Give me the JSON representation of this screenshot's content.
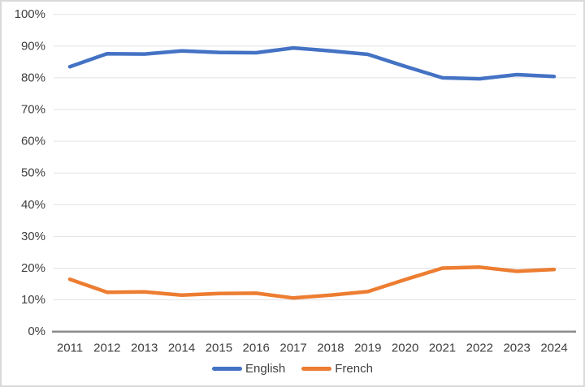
{
  "chart_data": {
    "type": "line",
    "title": "",
    "xlabel": "",
    "ylabel": "",
    "x": [
      2011,
      2012,
      2013,
      2014,
      2015,
      2016,
      2017,
      2018,
      2019,
      2020,
      2021,
      2022,
      2023,
      2024
    ],
    "x_ticks": [
      "2011",
      "2012",
      "2013",
      "2014",
      "2015",
      "2016",
      "2017",
      "2018",
      "2019",
      "2020",
      "2021",
      "2022",
      "2023",
      "2024"
    ],
    "series": [
      {
        "name": "English",
        "color": "#4472C4",
        "values": [
          83.5,
          87.6,
          87.5,
          88.5,
          88.0,
          87.9,
          89.4,
          88.5,
          87.4,
          83.6,
          80.0,
          79.7,
          81.0,
          80.4
        ]
      },
      {
        "name": "French",
        "color": "#ED7D31",
        "values": [
          16.5,
          12.4,
          12.5,
          11.5,
          12.0,
          12.1,
          10.6,
          11.5,
          12.6,
          16.4,
          20.0,
          20.3,
          19.0,
          19.6
        ]
      }
    ],
    "ylim": [
      0,
      100
    ],
    "y_tick_step": 10,
    "y_ticks": [
      "0%",
      "10%",
      "20%",
      "30%",
      "40%",
      "50%",
      "60%",
      "70%",
      "80%",
      "90%",
      "100%"
    ],
    "grid": true,
    "legend_position": "bottom",
    "style": {
      "background": "#FFFFFF",
      "frame_border": "#D9D9D9",
      "gridline": "#E2E2E2",
      "axis_line": "#8C8C8C",
      "text": "#404040"
    }
  }
}
